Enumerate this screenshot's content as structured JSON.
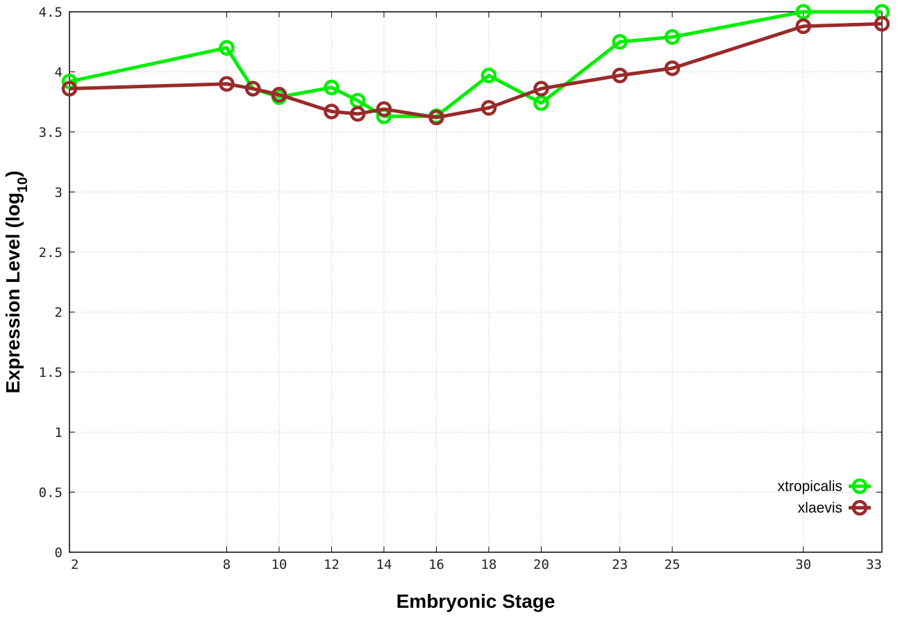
{
  "chart_data": {
    "type": "line",
    "xlabel": "Embryonic Stage",
    "ylabel_main": "Expression Level (log",
    "ylabel_sub": "10",
    "ylabel_close": ")",
    "xlim": [
      2,
      33
    ],
    "ylim": [
      0,
      4.5
    ],
    "xticks": [
      2,
      8,
      10,
      12,
      14,
      16,
      18,
      20,
      23,
      25,
      30,
      33
    ],
    "yticks": [
      0,
      0.5,
      1,
      1.5,
      2,
      2.5,
      3,
      3.5,
      4,
      4.5
    ],
    "ytick_labels": [
      "0",
      "0.5",
      "1",
      "1.5",
      "2",
      "2.5",
      "3",
      "3.5",
      "4",
      "4.5"
    ],
    "grid": true,
    "legend_position": "bottom-right",
    "x": [
      2,
      8,
      9,
      10,
      12,
      13,
      14,
      16,
      18,
      20,
      23,
      25,
      30,
      33
    ],
    "series": [
      {
        "name": "xtropicalis",
        "color": "#00ee00",
        "values": [
          3.92,
          4.2,
          3.86,
          3.79,
          3.87,
          3.76,
          3.63,
          3.63,
          3.97,
          3.74,
          4.25,
          4.29,
          4.5,
          4.5
        ]
      },
      {
        "name": "xlaevis",
        "color": "#9a2a2a",
        "values": [
          3.86,
          3.9,
          3.86,
          3.81,
          3.67,
          3.65,
          3.69,
          3.62,
          3.7,
          3.86,
          3.97,
          4.03,
          4.38,
          4.4
        ]
      }
    ]
  }
}
